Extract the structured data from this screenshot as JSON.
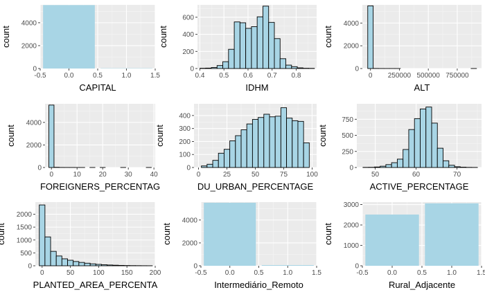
{
  "chart_data": [
    {
      "type": "bar",
      "xlabel": "CAPITAL",
      "ylabel": "count",
      "xlim": [
        -0.5,
        1.5
      ],
      "ylim": [
        0,
        5565
      ],
      "xticks": [
        -0.5,
        0.0,
        0.5,
        1.0,
        1.5
      ],
      "xtick_labels": [
        "-0.5",
        "0.0",
        "0.5",
        "1.0",
        "1.5"
      ],
      "yticks": [
        0,
        2000,
        4000
      ],
      "bins": [
        {
          "x0": -0.45,
          "x1": 0.45,
          "count": 5543
        },
        {
          "x0": 0.55,
          "x1": 1.45,
          "count": 27
        }
      ],
      "fill": "#a8d5e5",
      "outline": false
    },
    {
      "type": "bar",
      "xlabel": "IDHM",
      "ylabel": "count",
      "xlim": [
        0.39,
        0.885
      ],
      "ylim": [
        0,
        745
      ],
      "xticks": [
        0.4,
        0.5,
        0.6,
        0.7,
        0.8
      ],
      "xtick_labels": [
        "0.4",
        "0.5",
        "0.6",
        "0.7",
        "0.8"
      ],
      "yticks": [
        0,
        200,
        400,
        600
      ],
      "bin_start": 0.4,
      "bin_width": 0.0238,
      "counts": [
        3,
        5,
        12,
        35,
        80,
        225,
        545,
        535,
        470,
        490,
        605,
        730,
        540,
        350,
        115,
        40,
        22,
        8,
        3,
        2
      ],
      "fill": "#a8d5e5",
      "outline": true
    },
    {
      "type": "bar",
      "xlabel": "ALT",
      "ylabel": "count",
      "xlim": [
        -70000,
        960000
      ],
      "ylim": [
        0,
        5600
      ],
      "xticks": [
        0,
        250000,
        500000,
        750000
      ],
      "xtick_labels": [
        "0",
        "250000",
        "500000",
        "750000"
      ],
      "yticks": [
        0,
        2000,
        4000
      ],
      "bin_start": -23500,
      "bin_width": 47000,
      "counts": [
        5510,
        6,
        2,
        1,
        1,
        1,
        0,
        0,
        0,
        0,
        0,
        0,
        0,
        0,
        0,
        0,
        0,
        0,
        0,
        1
      ],
      "fill": "#a8d5e5",
      "outline": true
    },
    {
      "type": "bar",
      "xlabel": "FOREIGNERS_PERCENTAG",
      "ylabel": "count",
      "xlim": [
        -2.5,
        40.5
      ],
      "ylim": [
        0,
        5650
      ],
      "xticks": [
        0,
        10,
        20,
        30,
        40
      ],
      "xtick_labels": [
        "0",
        "10",
        "20",
        "30",
        "40"
      ],
      "yticks": [
        0,
        2000,
        4000
      ],
      "bin_start": -1,
      "bin_width": 2,
      "counts": [
        5540,
        18,
        5,
        3,
        2,
        1,
        1,
        0,
        1,
        0,
        1,
        0,
        0,
        0,
        1,
        0,
        0,
        0,
        0,
        1
      ],
      "fill": "#a8d5e5",
      "outline": true
    },
    {
      "type": "bar",
      "xlabel": "DU_URBAN_PERCENTAGE",
      "ylabel": "count",
      "xlim": [
        -4,
        104
      ],
      "ylim": [
        0,
        490
      ],
      "xticks": [
        0,
        25,
        50,
        75,
        100
      ],
      "xtick_labels": [
        "0",
        "25",
        "50",
        "75",
        "100"
      ],
      "yticks": [
        0,
        100,
        200,
        300,
        400
      ],
      "bin_start": 2.5,
      "bin_width": 5,
      "counts": [
        12,
        25,
        55,
        110,
        140,
        205,
        245,
        290,
        335,
        370,
        385,
        410,
        390,
        395,
        460,
        380,
        360,
        355,
        190
      ],
      "fill": "#a8d5e5",
      "outline": true
    },
    {
      "type": "bar",
      "xlabel": "ACTIVE_PERCENTAGE",
      "ylabel": "count",
      "xlim": [
        45.5,
        76
      ],
      "ylim": [
        0,
        990
      ],
      "xticks": [
        50,
        60,
        70
      ],
      "xtick_labels": [
        "50",
        "60",
        "70"
      ],
      "yticks": [
        0,
        250,
        500,
        750
      ],
      "bin_start": 47,
      "bin_width": 1.4,
      "counts": [
        2,
        3,
        8,
        20,
        45,
        75,
        130,
        280,
        590,
        760,
        910,
        940,
        690,
        300,
        105,
        35,
        12,
        5,
        2,
        1
      ],
      "fill": "#a8d5e5",
      "outline": true
    },
    {
      "type": "bar",
      "xlabel": "PLANTED_AREA_PERCENTA",
      "ylabel": "count",
      "xlim": [
        -12,
        200
      ],
      "ylim": [
        0,
        2470
      ],
      "xticks": [
        0,
        50,
        100,
        150,
        200
      ],
      "xtick_labels": [
        "0",
        "50",
        "100",
        "150",
        "200"
      ],
      "yticks": [
        0,
        500,
        1000,
        1500,
        2000
      ],
      "bin_start": -5,
      "bin_width": 10,
      "counts": [
        2360,
        1120,
        560,
        380,
        270,
        215,
        165,
        130,
        100,
        75,
        55,
        40,
        30,
        22,
        15,
        10,
        7,
        5,
        3,
        2
      ],
      "fill": "#a8d5e5",
      "outline": true
    },
    {
      "type": "bar",
      "xlabel": "Intermediário_Remoto",
      "ylabel": "count",
      "xlim": [
        -0.5,
        1.5
      ],
      "ylim": [
        0,
        5565
      ],
      "xticks": [
        -0.5,
        0.0,
        0.5,
        1.0,
        1.5
      ],
      "xtick_labels": [
        "-0.5",
        "0.0",
        "0.5",
        "1.0",
        "1.5"
      ],
      "yticks": [
        0,
        2000,
        4000
      ],
      "bins": [
        {
          "x0": -0.45,
          "x1": 0.45,
          "count": 5510
        },
        {
          "x0": 0.55,
          "x1": 1.45,
          "count": 60
        }
      ],
      "fill": "#a8d5e5",
      "outline": false
    },
    {
      "type": "bar",
      "xlabel": "Rural_Adjacente",
      "ylabel": "count",
      "xlim": [
        -0.5,
        1.5
      ],
      "ylim": [
        0,
        3120
      ],
      "xticks": [
        -0.5,
        0.0,
        0.5,
        1.0,
        1.5
      ],
      "xtick_labels": [
        "-0.5",
        "0.0",
        "0.5",
        "1.0",
        "1.5"
      ],
      "yticks": [
        0,
        1000,
        2000,
        3000
      ],
      "bins": [
        {
          "x0": -0.45,
          "x1": 0.45,
          "count": 2510
        },
        {
          "x0": 0.55,
          "x1": 1.45,
          "count": 3060
        }
      ],
      "fill": "#a8d5e5",
      "outline": false
    }
  ]
}
